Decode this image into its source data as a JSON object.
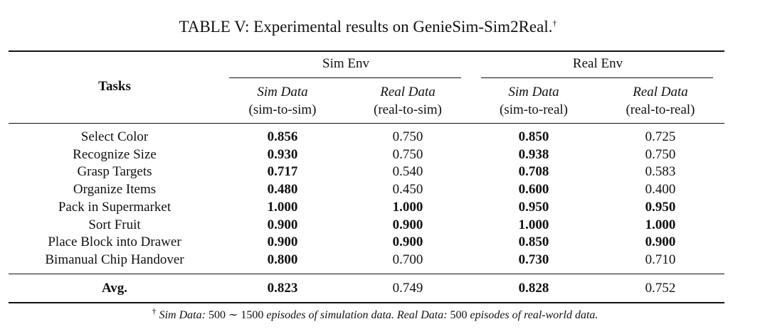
{
  "title": {
    "text": "TABLE V: Experimental results on GenieSim-Sim2Real.",
    "mark": "†"
  },
  "table": {
    "task_header": "Tasks",
    "groups": [
      "Sim Env",
      "Real Env"
    ],
    "subheaders": [
      {
        "name": "Sim Data",
        "detail": "(sim-to-sim)"
      },
      {
        "name": "Real Data",
        "detail": "(real-to-sim)"
      },
      {
        "name": "Sim Data",
        "detail": "(sim-to-real)"
      },
      {
        "name": "Real Data",
        "detail": "(real-to-real)"
      }
    ],
    "rows": [
      {
        "task": "Select Color",
        "values": [
          "0.856",
          "0.750",
          "0.850",
          "0.725"
        ],
        "bold": [
          true,
          false,
          true,
          false
        ]
      },
      {
        "task": "Recognize Size",
        "values": [
          "0.930",
          "0.750",
          "0.938",
          "0.750"
        ],
        "bold": [
          true,
          false,
          true,
          false
        ]
      },
      {
        "task": "Grasp Targets",
        "values": [
          "0.717",
          "0.540",
          "0.708",
          "0.583"
        ],
        "bold": [
          true,
          false,
          true,
          false
        ]
      },
      {
        "task": "Organize Items",
        "values": [
          "0.480",
          "0.450",
          "0.600",
          "0.400"
        ],
        "bold": [
          true,
          false,
          true,
          false
        ]
      },
      {
        "task": "Pack in Supermarket",
        "values": [
          "1.000",
          "1.000",
          "0.950",
          "0.950"
        ],
        "bold": [
          true,
          true,
          true,
          true
        ]
      },
      {
        "task": "Sort Fruit",
        "values": [
          "0.900",
          "0.900",
          "1.000",
          "1.000"
        ],
        "bold": [
          true,
          true,
          true,
          true
        ]
      },
      {
        "task": "Place Block into Drawer",
        "values": [
          "0.900",
          "0.900",
          "0.850",
          "0.900"
        ],
        "bold": [
          true,
          true,
          true,
          true
        ]
      },
      {
        "task": "Bimanual Chip Handover",
        "values": [
          "0.800",
          "0.700",
          "0.730",
          "0.710"
        ],
        "bold": [
          true,
          false,
          true,
          false
        ]
      }
    ],
    "avg": {
      "task": "Avg.",
      "values": [
        "0.823",
        "0.749",
        "0.828",
        "0.752"
      ],
      "bold": [
        true,
        false,
        true,
        false
      ]
    }
  },
  "footnote": {
    "mark": "†",
    "parts": [
      {
        "text": "Sim Data:",
        "italic": true
      },
      {
        "text": "500 ∼ 1500",
        "italic": false
      },
      {
        "text": "episodes of simulation data. Real Data:",
        "italic": true
      },
      {
        "text": "500",
        "italic": false
      },
      {
        "text": "episodes of real-world data.",
        "italic": true
      }
    ]
  }
}
